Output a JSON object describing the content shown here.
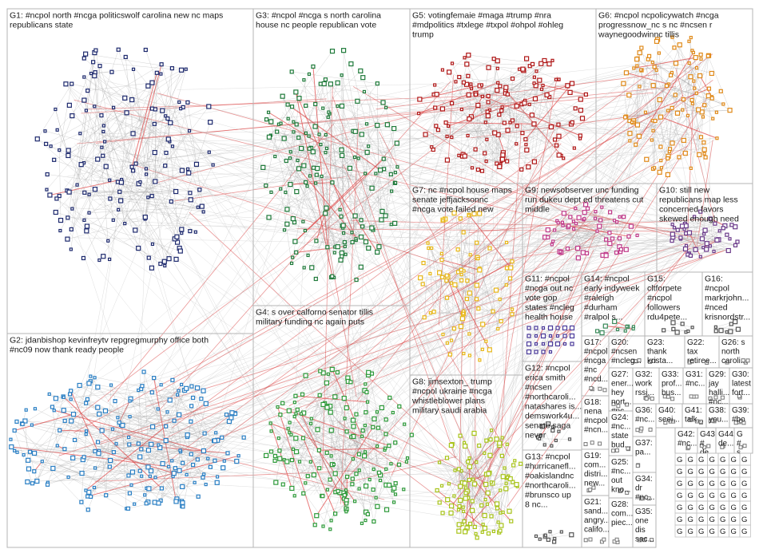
{
  "groups": [
    {
      "id": "g1",
      "lines": [
        "G1: #ncpol north #ncga politicswolf carolina new nc maps",
        "republicans state"
      ],
      "color": "#1e2a6e"
    },
    {
      "id": "g2",
      "lines": [
        "G2: jdanbishop kevinfreytv repgregmurphy office both",
        "#nc09 now thank ready people"
      ],
      "color": "#2a7fc4"
    },
    {
      "id": "g3",
      "lines": [
        "G3: #ncpol #ncga s north carolina",
        "house nc people republican vote"
      ],
      "color": "#1f7a3a"
    },
    {
      "id": "g4",
      "lines": [
        "G4: s over calforno senator tillis",
        "military funding nc again puts"
      ],
      "color": "#2e9a3a"
    },
    {
      "id": "g5",
      "lines": [
        "G5: votingfemaie #maga #trump #nra",
        "#mdpolitics #txlege #txpol #ohpol #ohleg",
        "trump"
      ],
      "color": "#b01818"
    },
    {
      "id": "g6",
      "lines": [
        "G6: #ncpol ncpolicywatch #ncga",
        "progressnow_nc s nc #ncsen r",
        "waynegoodwinnc tillis"
      ],
      "color": "#e08a1a"
    },
    {
      "id": "g7",
      "lines": [
        "G7: nc #ncpol house maps",
        "senate jeffjacksonnc",
        "#ncga vote failed new"
      ],
      "color": "#e8b81a"
    },
    {
      "id": "g8",
      "lines": [
        "G8: jimsexton_ trump",
        "#ncpol ukraine #ncga",
        "whistleblower plans",
        "military saudi arabia"
      ],
      "color": "#a8c41a"
    },
    {
      "id": "g9",
      "lines": [
        "G9: newsobserver unc funding",
        "run dukeu dept ed threatens cut",
        "middle"
      ],
      "color": "#c03a8a"
    },
    {
      "id": "g10",
      "lines": [
        "G10: still new",
        "republicans map less",
        "concerned favors",
        "skewed enough need"
      ],
      "color": "#6a3a8a"
    },
    {
      "id": "g11",
      "lines": [
        "G11: #ncpol",
        "#ncga out nc",
        "vote gop",
        "states #ncleg",
        "health house"
      ],
      "color": "#4a3a9a"
    },
    {
      "id": "g12",
      "lines": [
        "G12: #ncpol",
        "erica smith",
        "#ncsen",
        "#northcaroli...",
        "natashares is...",
        "demswork4u...",
        "senate saga",
        "never"
      ],
      "color": "#555555"
    },
    {
      "id": "g13",
      "lines": [
        "G13: #ncpol",
        "#hurricanefl...",
        "#oakislandnc",
        "#northcaroli...",
        "#brunsco up",
        "8 nc..."
      ],
      "color": "#555555"
    },
    {
      "id": "g14",
      "lines": [
        "G14: #ncpol",
        "early indyweek",
        "#raleigh",
        "#durham",
        "#ralpol s..."
      ],
      "color": "#3a8a5a"
    },
    {
      "id": "g15",
      "lines": [
        "G15:",
        "cltforpete",
        "#ncpol",
        "followers",
        "rdu4pete..."
      ],
      "color": "#555555"
    },
    {
      "id": "g16",
      "lines": [
        "G16:",
        "#ncpol",
        "markrjohn...",
        "#nced",
        "krisnordstr..."
      ],
      "color": "#555555"
    },
    {
      "id": "g17",
      "lines": [
        "G17:",
        "#ncpol",
        "#ncga",
        "#nc",
        "#ncd..."
      ],
      "color": "#555555"
    },
    {
      "id": "g18",
      "lines": [
        "G18:",
        "nena",
        "#ncpol",
        "#ncn..."
      ],
      "color": "#555555"
    },
    {
      "id": "g19",
      "lines": [
        "G19:",
        "com...",
        "distri...",
        "new..."
      ],
      "color": "#555555"
    },
    {
      "id": "g20",
      "lines": [
        "G20:",
        "#ncsen",
        "#ncleg..."
      ],
      "color": "#555555"
    },
    {
      "id": "g21",
      "lines": [
        "G21:",
        "sand...",
        "angry...",
        "califo..."
      ],
      "color": "#555555"
    },
    {
      "id": "g22",
      "lines": [
        "G22:",
        "tax",
        "retiree..."
      ],
      "color": "#555555"
    },
    {
      "id": "g23",
      "lines": [
        "G23:",
        "thank",
        "krista..."
      ],
      "color": "#555555"
    },
    {
      "id": "g24",
      "lines": [
        "G24:",
        "#nc...",
        "state",
        "bud..."
      ],
      "color": "#555555"
    },
    {
      "id": "g25",
      "lines": [
        "G25:",
        "#nc...",
        "out",
        "kno..."
      ],
      "color": "#555555"
    },
    {
      "id": "g26",
      "lines": [
        "G26: s",
        "north",
        "caroli..."
      ],
      "color": "#555555"
    },
    {
      "id": "g27",
      "lines": [
        "G27:",
        "ener...",
        "hey",
        "nort...",
        "#nc..."
      ],
      "color": "#555555"
    },
    {
      "id": "g28",
      "lines": [
        "G28:",
        "com...",
        "piec..."
      ],
      "color": "#555555"
    },
    {
      "id": "g29",
      "lines": [
        "G29:",
        "jay",
        "halli...",
        "#nc..."
      ],
      "color": "#555555"
    },
    {
      "id": "g30",
      "lines": [
        "G30:",
        "latest",
        "fort..."
      ],
      "color": "#555555"
    },
    {
      "id": "g31",
      "lines": [
        "G31:",
        "#nc..."
      ],
      "color": "#555555"
    },
    {
      "id": "g32",
      "lines": [
        "G32:",
        "work",
        "rssi..."
      ],
      "color": "#555555"
    },
    {
      "id": "g33",
      "lines": [
        "G33:",
        "prof...",
        "bus..."
      ],
      "color": "#555555"
    },
    {
      "id": "g34",
      "lines": [
        "G34:",
        "dr",
        "#nc..."
      ],
      "color": "#555555"
    },
    {
      "id": "g35",
      "lines": [
        "G35:",
        "one",
        "dis",
        "sac..."
      ],
      "color": "#555555"
    },
    {
      "id": "g36",
      "lines": [
        "G36:",
        "#nc..."
      ],
      "color": "#555555"
    },
    {
      "id": "g37",
      "lines": [
        "G37:",
        "pa..."
      ],
      "color": "#555555"
    },
    {
      "id": "g38",
      "lines": [
        "G38:",
        "you..."
      ],
      "color": "#555555"
    },
    {
      "id": "g39",
      "lines": [
        "G39:",
        "#bo"
      ],
      "color": "#555555"
    },
    {
      "id": "g40",
      "lines": [
        "G40:",
        "seei..."
      ],
      "color": "#555555"
    },
    {
      "id": "g41",
      "lines": [
        "G41:",
        "talk..."
      ],
      "color": "#555555"
    },
    {
      "id": "g42",
      "lines": [
        "G42:",
        "#nc..."
      ],
      "color": "#555555"
    },
    {
      "id": "g43",
      "lines": [
        "G43",
        "#",
        "de..."
      ],
      "color": "#555555"
    },
    {
      "id": "g44",
      "lines": [
        "G44:",
        "de..."
      ],
      "color": "#555555"
    },
    {
      "id": "g45",
      "lines": [
        "G",
        "#",
        "s"
      ],
      "color": "#555555"
    }
  ],
  "tiny_group_label": "G"
}
